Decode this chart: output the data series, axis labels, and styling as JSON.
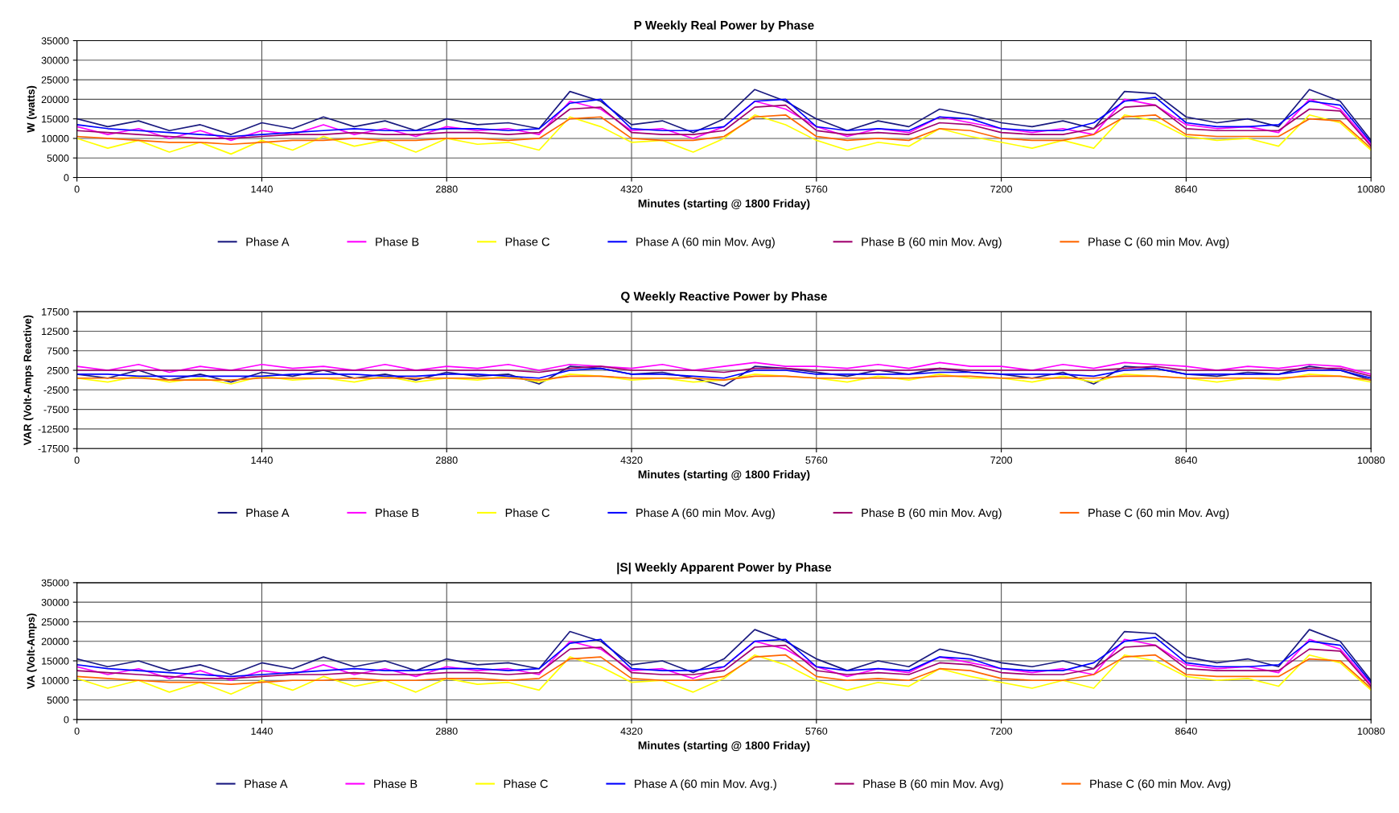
{
  "chart_data": [
    {
      "type": "line",
      "title": "P Weekly Real Power by Phase",
      "xlabel": "Minutes (starting @ 1800 Friday)",
      "ylabel": "W (watts)",
      "xlim": [
        0,
        10080
      ],
      "xticks": [
        0,
        1440,
        2880,
        4320,
        5760,
        7200,
        8640,
        10080
      ],
      "ylim": [
        0,
        35000
      ],
      "yticks": [
        0,
        5000,
        10000,
        15000,
        20000,
        25000,
        30000,
        35000
      ],
      "grid": true,
      "legend": "bottom",
      "marker": "none",
      "line_style": "solid",
      "x": [
        0,
        240,
        480,
        720,
        960,
        1200,
        1440,
        1680,
        1920,
        2160,
        2400,
        2640,
        2880,
        3120,
        3360,
        3600,
        3840,
        4080,
        4320,
        4560,
        4800,
        5040,
        5280,
        5520,
        5760,
        6000,
        6240,
        6480,
        6720,
        6960,
        7200,
        7440,
        7680,
        7920,
        8160,
        8400,
        8640,
        8880,
        9120,
        9360,
        9600,
        9840,
        10080
      ],
      "series": [
        {
          "name": "Phase A",
          "color": "#1a1a80",
          "values": [
            15000,
            13000,
            14500,
            12000,
            13500,
            11000,
            14000,
            12500,
            15500,
            13000,
            14500,
            12000,
            15000,
            13500,
            14000,
            12500,
            22000,
            19500,
            13500,
            14500,
            11500,
            15000,
            22500,
            19500,
            15000,
            12000,
            14500,
            13000,
            17500,
            16000,
            14000,
            13000,
            14500,
            12500,
            22000,
            21500,
            15500,
            14000,
            15000,
            13000,
            22500,
            19500,
            9500
          ]
        },
        {
          "name": "Phase B",
          "color": "#ff00ff",
          "values": [
            13000,
            11000,
            12500,
            10000,
            12000,
            9500,
            12000,
            11000,
            13500,
            11000,
            12500,
            10500,
            13000,
            12000,
            12500,
            11000,
            19500,
            17500,
            12000,
            12500,
            10000,
            13000,
            19500,
            17500,
            13000,
            10500,
            12500,
            11500,
            15500,
            14000,
            12500,
            11500,
            12500,
            11000,
            20000,
            18500,
            13500,
            12500,
            13000,
            11500,
            20000,
            17500,
            8500
          ]
        },
        {
          "name": "Phase C",
          "color": "#ffff00",
          "values": [
            10000,
            7500,
            9500,
            6500,
            9000,
            6000,
            9500,
            7000,
            10500,
            8000,
            9500,
            6500,
            10000,
            8500,
            9000,
            7000,
            15500,
            13000,
            9000,
            9500,
            6500,
            10000,
            16000,
            13500,
            9500,
            7000,
            9000,
            8000,
            12500,
            10500,
            9000,
            7500,
            9500,
            7500,
            16000,
            14500,
            10500,
            9500,
            10000,
            8000,
            16000,
            14000,
            7000
          ]
        },
        {
          "name": "Phase A (60 min Mov. Avg)",
          "color": "#0000ff",
          "values": [
            13500,
            12500,
            12000,
            11500,
            11000,
            10500,
            11000,
            11500,
            12000,
            12500,
            12000,
            12000,
            12500,
            12500,
            12000,
            12500,
            19000,
            20000,
            12500,
            12000,
            12000,
            13000,
            19500,
            20000,
            13000,
            12000,
            12500,
            12000,
            15500,
            15000,
            12500,
            12000,
            12000,
            14000,
            19500,
            20500,
            14000,
            13000,
            13000,
            13500,
            19500,
            18500,
            9000
          ]
        },
        {
          "name": "Phase B (60 min Mov. Avg)",
          "color": "#a0006e",
          "values": [
            12000,
            11500,
            11000,
            10500,
            10000,
            10000,
            10500,
            11000,
            11000,
            11500,
            11000,
            11000,
            11500,
            11500,
            11000,
            11500,
            17500,
            18000,
            11500,
            11000,
            11000,
            12000,
            18000,
            18500,
            12000,
            11000,
            11500,
            11000,
            14000,
            13500,
            11500,
            11000,
            11000,
            12500,
            18000,
            18500,
            12500,
            12000,
            12000,
            12000,
            17500,
            17000,
            8000
          ]
        },
        {
          "name": "Phase C (60 min Mov. Avg)",
          "color": "#ff6600",
          "values": [
            10500,
            10000,
            9500,
            9000,
            9000,
            8500,
            9000,
            9500,
            9500,
            10000,
            9500,
            9500,
            10000,
            10000,
            9500,
            10000,
            15000,
            15500,
            10000,
            9500,
            9500,
            10500,
            15500,
            16000,
            10500,
            9500,
            10000,
            9500,
            12500,
            12000,
            10000,
            9500,
            9500,
            11000,
            15500,
            16000,
            11000,
            10500,
            10500,
            10500,
            15000,
            14500,
            7500
          ]
        }
      ]
    },
    {
      "type": "line",
      "title": "Q Weekly Reactive Power by Phase",
      "xlabel": "Minutes (starting @ 1800 Friday)",
      "ylabel": "VAR (Volt-Amps Reactive)",
      "xlim": [
        0,
        10080
      ],
      "xticks": [
        0,
        1440,
        2880,
        4320,
        5760,
        7200,
        8640,
        10080
      ],
      "ylim": [
        -17500,
        17500
      ],
      "yticks": [
        -17500,
        -12500,
        -7500,
        -2500,
        2500,
        7500,
        12500,
        17500
      ],
      "grid": true,
      "legend": "bottom",
      "marker": "none",
      "line_style": "solid",
      "x": [
        0,
        240,
        480,
        720,
        960,
        1200,
        1440,
        1680,
        1920,
        2160,
        2400,
        2640,
        2880,
        3120,
        3360,
        3600,
        3840,
        4080,
        4320,
        4560,
        4800,
        5040,
        5280,
        5520,
        5760,
        6000,
        6240,
        6480,
        6720,
        6960,
        7200,
        7440,
        7680,
        7920,
        8160,
        8400,
        8640,
        8880,
        9120,
        9360,
        9600,
        9840,
        10080
      ],
      "series": [
        {
          "name": "Phase A",
          "color": "#1a1a80",
          "values": [
            1500,
            500,
            2500,
            0,
            1500,
            -500,
            2000,
            1000,
            2500,
            500,
            1500,
            0,
            2000,
            1000,
            1500,
            -1000,
            3500,
            3000,
            1500,
            2000,
            500,
            -1500,
            3500,
            3000,
            2000,
            1000,
            2500,
            1500,
            3000,
            2000,
            1500,
            500,
            2000,
            -1000,
            3500,
            3000,
            1500,
            1000,
            2000,
            1500,
            3500,
            2500,
            0
          ]
        },
        {
          "name": "Phase B",
          "color": "#ff00ff",
          "values": [
            3500,
            2500,
            4000,
            2000,
            3500,
            2500,
            4000,
            3000,
            3500,
            2500,
            4000,
            2500,
            3500,
            3000,
            4000,
            2500,
            4000,
            3500,
            3000,
            4000,
            2500,
            3500,
            4500,
            3500,
            3500,
            3000,
            4000,
            3000,
            4500,
            3500,
            3500,
            2500,
            4000,
            3000,
            4500,
            4000,
            3500,
            2500,
            3500,
            3000,
            4000,
            3500,
            1500
          ]
        },
        {
          "name": "Phase C",
          "color": "#ffff00",
          "values": [
            500,
            -500,
            1000,
            -500,
            500,
            -1000,
            1000,
            0,
            500,
            -500,
            1000,
            -500,
            500,
            0,
            1000,
            -500,
            1500,
            1000,
            0,
            500,
            -500,
            0,
            1500,
            1000,
            500,
            -500,
            1000,
            0,
            1500,
            500,
            500,
            -500,
            1000,
            -500,
            1500,
            1000,
            500,
            -500,
            500,
            0,
            1500,
            1000,
            -500
          ]
        },
        {
          "name": "Phase A (60 min Mov. Avg)",
          "color": "#0000ff",
          "values": [
            1500,
            1500,
            1000,
            1000,
            1000,
            1000,
            1000,
            1500,
            1500,
            1500,
            1000,
            1000,
            1500,
            1500,
            1000,
            500,
            2500,
            3000,
            1500,
            1500,
            1000,
            500,
            2500,
            2500,
            1500,
            1500,
            1500,
            1500,
            2000,
            2000,
            1500,
            1500,
            1500,
            1000,
            2500,
            3000,
            1500,
            1500,
            1500,
            1500,
            2500,
            2500,
            500
          ]
        },
        {
          "name": "Phase B (60 min Mov. Avg)",
          "color": "#a0006e",
          "values": [
            2500,
            2500,
            2500,
            2500,
            2500,
            2500,
            2500,
            2500,
            2500,
            2500,
            2500,
            2500,
            2500,
            2500,
            2500,
            2000,
            3000,
            3500,
            2500,
            2500,
            2500,
            2000,
            3000,
            3000,
            2500,
            2500,
            2500,
            2500,
            3000,
            2500,
            2500,
            2500,
            2500,
            2500,
            3000,
            3500,
            2500,
            2500,
            2500,
            2500,
            3000,
            3000,
            1000
          ]
        },
        {
          "name": "Phase C (60 min Mov. Avg)",
          "color": "#ff6600",
          "values": [
            500,
            500,
            500,
            0,
            0,
            0,
            500,
            500,
            500,
            500,
            500,
            500,
            500,
            500,
            500,
            0,
            1000,
            1000,
            500,
            500,
            500,
            0,
            1000,
            1000,
            500,
            500,
            500,
            500,
            1000,
            1000,
            500,
            500,
            500,
            500,
            1000,
            1000,
            500,
            500,
            500,
            500,
            1000,
            1000,
            0
          ]
        }
      ]
    },
    {
      "type": "line",
      "title": "|S| Weekly Apparent Power by Phase",
      "xlabel": "Minutes (starting @ 1800 Friday)",
      "ylabel": "VA (Volt-Amps)",
      "xlim": [
        0,
        10080
      ],
      "xticks": [
        0,
        1440,
        2880,
        4320,
        5760,
        7200,
        8640,
        10080
      ],
      "ylim": [
        0,
        35000
      ],
      "yticks": [
        0,
        5000,
        10000,
        15000,
        20000,
        25000,
        30000,
        35000
      ],
      "grid": true,
      "legend": "bottom",
      "marker": "none",
      "line_style": "solid",
      "x": [
        0,
        240,
        480,
        720,
        960,
        1200,
        1440,
        1680,
        1920,
        2160,
        2400,
        2640,
        2880,
        3120,
        3360,
        3600,
        3840,
        4080,
        4320,
        4560,
        4800,
        5040,
        5280,
        5520,
        5760,
        6000,
        6240,
        6480,
        6720,
        6960,
        7200,
        7440,
        7680,
        7920,
        8160,
        8400,
        8640,
        8880,
        9120,
        9360,
        9600,
        9840,
        10080
      ],
      "series": [
        {
          "name": "Phase A",
          "color": "#1a1a80",
          "values": [
            15500,
            13500,
            15000,
            12500,
            14000,
            11500,
            14500,
            13000,
            16000,
            13500,
            15000,
            12500,
            15500,
            14000,
            14500,
            13000,
            22500,
            20000,
            14000,
            15000,
            12000,
            15500,
            23000,
            20000,
            15500,
            12500,
            15000,
            13500,
            18000,
            16500,
            14500,
            13500,
            15000,
            13000,
            22500,
            22000,
            16000,
            14500,
            15500,
            13500,
            23000,
            20000,
            10000
          ]
        },
        {
          "name": "Phase B",
          "color": "#ff00ff",
          "values": [
            13500,
            11500,
            13000,
            10500,
            12500,
            10000,
            12500,
            11500,
            14000,
            11500,
            13000,
            11000,
            13500,
            12500,
            13000,
            11500,
            20000,
            18000,
            12500,
            13000,
            10500,
            13500,
            20000,
            18000,
            13500,
            11000,
            13000,
            12000,
            16000,
            14500,
            13000,
            12000,
            13000,
            11500,
            20500,
            19000,
            14000,
            13000,
            13500,
            12000,
            20500,
            18000,
            9000
          ]
        },
        {
          "name": "Phase C",
          "color": "#ffff00",
          "values": [
            10500,
            8000,
            10000,
            7000,
            9500,
            6500,
            10000,
            7500,
            11000,
            8500,
            10000,
            7000,
            10500,
            9000,
            9500,
            7500,
            16000,
            13500,
            9500,
            10000,
            7000,
            10500,
            16500,
            14000,
            10000,
            7500,
            9500,
            8500,
            13000,
            11000,
            9500,
            8000,
            10000,
            8000,
            16500,
            15000,
            11000,
            10000,
            10500,
            8500,
            16500,
            14500,
            7500
          ]
        },
        {
          "name": "Phase A (60 min Mov. Avg.)",
          "color": "#0000ff",
          "values": [
            14000,
            13000,
            12500,
            12000,
            11500,
            11000,
            11500,
            12000,
            12500,
            13000,
            12500,
            12500,
            13000,
            13000,
            12500,
            13000,
            19500,
            20500,
            13000,
            12500,
            12500,
            13500,
            20000,
            20500,
            13500,
            12500,
            13000,
            12500,
            16000,
            15500,
            13000,
            12500,
            12500,
            14500,
            20000,
            21000,
            14500,
            13500,
            13500,
            14000,
            20000,
            19000,
            9500
          ]
        },
        {
          "name": "Phase B (60 min Mov. Avg)",
          "color": "#a0006e",
          "values": [
            12500,
            12000,
            11500,
            11000,
            10500,
            10500,
            11000,
            11500,
            11500,
            12000,
            11500,
            11500,
            12000,
            12000,
            11500,
            12000,
            18000,
            18500,
            12000,
            11500,
            11500,
            12500,
            18500,
            19000,
            12500,
            11500,
            12000,
            11500,
            14500,
            14000,
            12000,
            11500,
            11500,
            13000,
            18500,
            19000,
            13000,
            12500,
            12500,
            12500,
            18000,
            17500,
            8500
          ]
        },
        {
          "name": "Phase C (60 min Mov. Avg)",
          "color": "#ff6600",
          "values": [
            11000,
            10500,
            10000,
            9500,
            9500,
            9000,
            9500,
            10000,
            10000,
            10500,
            10000,
            10000,
            10500,
            10500,
            10000,
            10500,
            15500,
            16000,
            10500,
            10000,
            10000,
            11000,
            16000,
            16500,
            11000,
            10000,
            10500,
            10000,
            13000,
            12500,
            10500,
            10000,
            10000,
            11500,
            16000,
            16500,
            11500,
            11000,
            11000,
            11000,
            15500,
            15000,
            8000
          ]
        }
      ]
    }
  ]
}
